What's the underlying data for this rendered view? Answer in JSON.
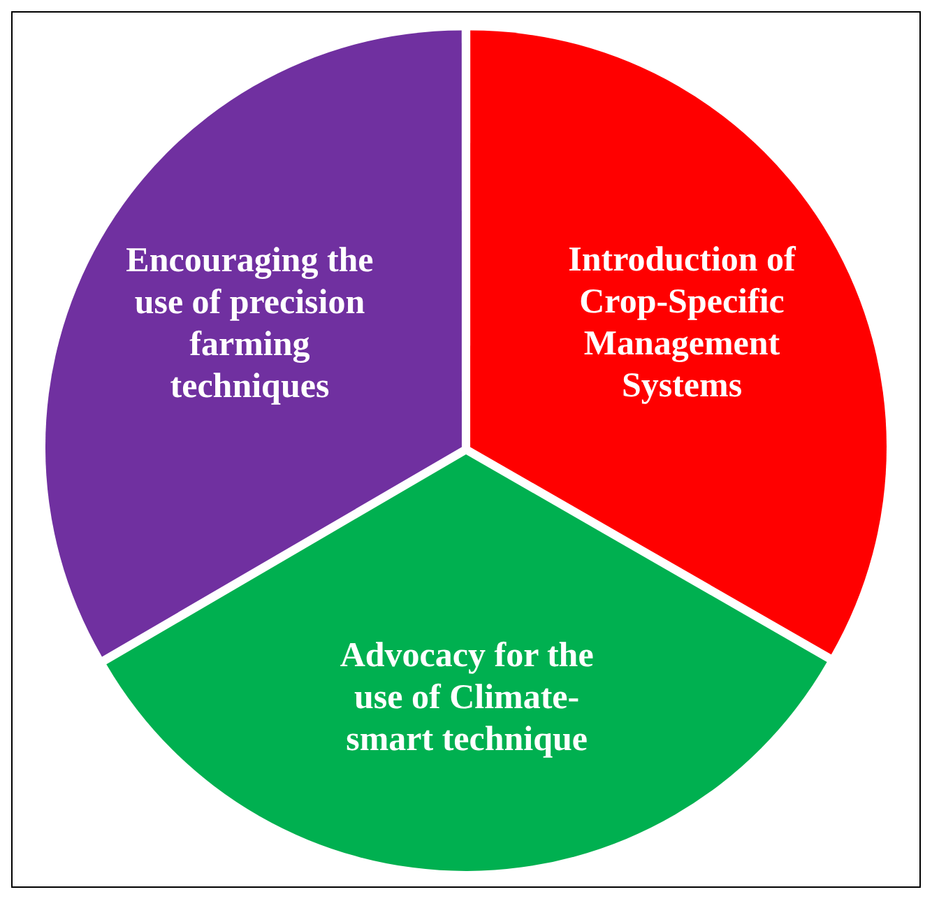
{
  "chart_data": {
    "type": "pie",
    "categories": [
      "Introduction of Crop-Specific Management Systems",
      "Advocacy for the use of Climate-smart technique",
      "Encouraging the use of precision farming techniques"
    ],
    "values": [
      33.3,
      33.3,
      33.4
    ],
    "colors": [
      "#ff0000",
      "#00b050",
      "#7030a0"
    ],
    "legend": false
  }
}
